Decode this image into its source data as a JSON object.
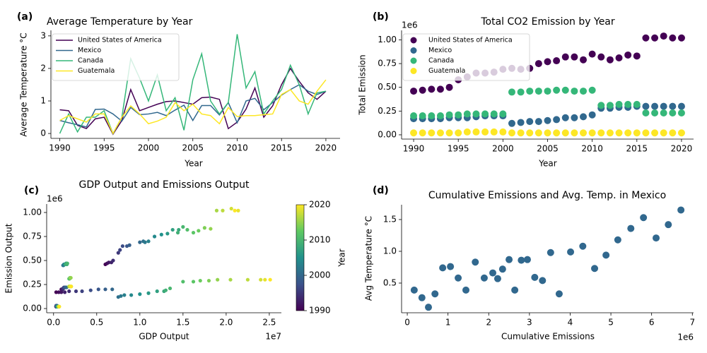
{
  "chart_data": [
    {
      "type": "line",
      "panel_label": "(a)",
      "title": "Average Temperature by Year",
      "xlabel": "Year",
      "ylabel": "Average Temperature °C",
      "x": [
        1990,
        1991,
        1992,
        1993,
        1994,
        1995,
        1996,
        1997,
        1998,
        1999,
        2000,
        2001,
        2002,
        2003,
        2004,
        2005,
        2006,
        2007,
        2008,
        2009,
        2010,
        2011,
        2012,
        2013,
        2014,
        2015,
        2016,
        2017,
        2018,
        2019,
        2020
      ],
      "series": [
        {
          "name": "United States of America",
          "color": "#440154",
          "values": [
            0.73,
            0.7,
            0.25,
            0.15,
            0.45,
            0.5,
            -0.02,
            0.4,
            1.35,
            0.7,
            0.8,
            0.9,
            0.98,
            1.0,
            0.95,
            0.9,
            1.1,
            1.12,
            1.05,
            0.15,
            0.35,
            0.75,
            1.4,
            0.5,
            0.85,
            1.5,
            2.0,
            1.6,
            1.25,
            1.05,
            1.3
          ]
        },
        {
          "name": "Mexico",
          "color": "#31688e",
          "values": [
            0.4,
            0.33,
            0.27,
            0.2,
            0.74,
            0.75,
            0.6,
            0.38,
            0.8,
            0.58,
            0.6,
            0.65,
            0.55,
            0.72,
            0.87,
            0.4,
            0.86,
            0.86,
            0.57,
            0.95,
            0.33,
            1.0,
            1.08,
            0.73,
            0.95,
            1.18,
            1.35,
            1.5,
            1.3,
            1.2,
            1.3
          ]
        },
        {
          "name": "Canada",
          "color": "#35b779",
          "values": [
            0.0,
            0.6,
            0.05,
            0.5,
            0.5,
            0.7,
            0.0,
            0.5,
            2.3,
            1.7,
            1.0,
            1.8,
            0.7,
            1.1,
            0.1,
            1.65,
            2.45,
            1.0,
            0.6,
            0.95,
            3.05,
            1.4,
            1.9,
            0.6,
            1.0,
            1.35,
            2.1,
            1.5,
            0.6,
            1.25,
            1.3
          ]
        },
        {
          "name": "Guatemala",
          "color": "#fde725",
          "values": [
            0.4,
            0.55,
            0.45,
            0.35,
            0.6,
            0.6,
            0.0,
            0.5,
            0.85,
            0.6,
            0.3,
            0.38,
            0.5,
            0.95,
            0.7,
            0.9,
            0.6,
            0.55,
            0.3,
            0.8,
            0.52,
            0.55,
            0.55,
            0.58,
            0.6,
            1.2,
            1.35,
            1.0,
            0.9,
            1.3,
            1.65
          ]
        }
      ],
      "xlim": [
        1989,
        2021.6
      ],
      "ylim": [
        -0.15,
        3.17
      ],
      "xticks": [
        1990,
        1995,
        2000,
        2005,
        2010,
        2015,
        2020
      ],
      "yticks": [
        0,
        1,
        2,
        3
      ],
      "legend": "upper left"
    },
    {
      "type": "scatter",
      "panel_label": "(b)",
      "title": "Total CO2 Emission by Year",
      "xlabel": "Year",
      "ylabel": "Total Emission",
      "y_multiplier": "1e6",
      "x": [
        1990,
        1991,
        1992,
        1993,
        1994,
        1995,
        1996,
        1997,
        1998,
        1999,
        2000,
        2001,
        2002,
        2003,
        2004,
        2005,
        2006,
        2007,
        2008,
        2009,
        2010,
        2011,
        2012,
        2013,
        2014,
        2015,
        2016,
        2017,
        2018,
        2019,
        2020
      ],
      "series": [
        {
          "name": "United States of America",
          "color": "#440154",
          "values": [
            0.46,
            0.47,
            0.48,
            0.48,
            0.5,
            0.58,
            0.61,
            0.65,
            0.65,
            0.66,
            0.69,
            0.7,
            0.69,
            0.7,
            0.75,
            0.77,
            0.78,
            0.82,
            0.82,
            0.79,
            0.85,
            0.82,
            0.79,
            0.81,
            0.84,
            0.83,
            1.02,
            1.02,
            1.04,
            1.02,
            1.02
          ]
        },
        {
          "name": "Mexico",
          "color": "#31688e",
          "values": [
            0.17,
            0.17,
            0.17,
            0.17,
            0.18,
            0.18,
            0.18,
            0.19,
            0.2,
            0.2,
            0.2,
            0.12,
            0.13,
            0.14,
            0.14,
            0.15,
            0.16,
            0.18,
            0.18,
            0.19,
            0.21,
            0.28,
            0.28,
            0.29,
            0.29,
            0.3,
            0.3,
            0.3,
            0.3,
            0.3,
            0.3
          ]
        },
        {
          "name": "Canada",
          "color": "#35b779",
          "values": [
            0.2,
            0.2,
            0.2,
            0.2,
            0.21,
            0.21,
            0.22,
            0.22,
            0.22,
            0.22,
            0.22,
            0.45,
            0.45,
            0.46,
            0.46,
            0.46,
            0.47,
            0.47,
            0.46,
            0.46,
            0.47,
            0.31,
            0.31,
            0.32,
            0.32,
            0.32,
            0.23,
            0.23,
            0.23,
            0.23,
            0.23
          ]
        },
        {
          "name": "Guatemala",
          "color": "#fde725",
          "values": [
            0.02,
            0.02,
            0.02,
            0.02,
            0.02,
            0.02,
            0.03,
            0.03,
            0.03,
            0.03,
            0.03,
            0.02,
            0.02,
            0.02,
            0.02,
            0.02,
            0.02,
            0.02,
            0.02,
            0.02,
            0.02,
            0.02,
            0.02,
            0.02,
            0.02,
            0.02,
            0.02,
            0.02,
            0.02,
            0.02,
            0.02
          ]
        }
      ],
      "xlim": [
        1988.65,
        2021.35
      ],
      "ylim": [
        -0.045,
        1.1
      ],
      "xticks": [
        1990,
        1995,
        2000,
        2005,
        2010,
        2015,
        2020
      ],
      "yticks": [
        {
          "value": 0,
          "label": "0.00"
        },
        0.25,
        {
          "value": 0.5,
          "label": "0.50"
        },
        0.75,
        {
          "value": 1,
          "label": "1.00"
        }
      ],
      "legend": "upper left"
    },
    {
      "type": "scatter",
      "panel_label": "(c)",
      "title": "GDP Output and Emissions Output",
      "xlabel": "GDP Output",
      "ylabel": "Emission Output",
      "x_multiplier": "1e7",
      "y_multiplier": "1e6",
      "x": [
        0.6,
        0.62,
        0.64,
        0.67,
        0.69,
        0.75,
        0.77,
        0.8,
        0.85,
        0.88,
        1.0,
        1.04,
        1.06,
        1.1,
        1.17,
        1.25,
        1.32,
        1.38,
        1.45,
        1.44,
        1.5,
        1.55,
        1.62,
        1.68,
        1.75,
        1.82,
        1.89,
        1.96,
        2.06,
        2.14,
        2.1,
        0.03,
        0.06,
        0.09,
        0.13,
        0.18,
        0.26,
        0.33,
        0.43,
        0.52,
        0.6,
        0.68,
        0.75,
        0.78,
        0.82,
        0.9,
        1.0,
        1.1,
        1.2,
        1.28,
        1.3,
        1.35,
        1.5,
        1.62,
        1.7,
        1.8,
        1.9,
        2.05,
        2.25,
        2.4,
        2.45,
        2.51,
        0.09,
        0.095,
        0.1,
        0.105,
        0.11,
        0.115,
        0.12,
        0.13,
        0.135,
        0.14,
        0.15,
        0.11,
        0.115,
        0.12,
        0.13,
        0.14,
        0.145,
        0.15,
        0.155,
        0.14,
        0.16,
        0.18,
        0.185,
        0.19,
        0.195,
        0.2,
        0.18,
        0.185,
        0.195,
        0.205,
        0.2,
        0.03,
        0.03,
        0.03,
        0.03,
        0.03,
        0.03,
        0.03,
        0.035,
        0.035,
        0.035,
        0.04,
        0.04,
        0.04,
        0.04,
        0.045,
        0.045,
        0.045,
        0.05,
        0.05,
        0.05,
        0.05,
        0.055,
        0.055,
        0.055,
        0.06,
        0.06,
        0.06,
        0.065,
        0.065,
        0.065,
        0.065
      ],
      "values": [
        0.46,
        0.47,
        0.48,
        0.48,
        0.5,
        0.58,
        0.61,
        0.65,
        0.65,
        0.66,
        0.69,
        0.7,
        0.69,
        0.7,
        0.75,
        0.77,
        0.78,
        0.82,
        0.82,
        0.79,
        0.85,
        0.82,
        0.79,
        0.81,
        0.84,
        0.83,
        1.02,
        1.02,
        1.04,
        1.02,
        1.02,
        0.17,
        0.17,
        0.17,
        0.17,
        0.18,
        0.18,
        0.18,
        0.19,
        0.2,
        0.2,
        0.2,
        0.12,
        0.13,
        0.14,
        0.14,
        0.15,
        0.16,
        0.18,
        0.18,
        0.19,
        0.21,
        0.28,
        0.28,
        0.29,
        0.29,
        0.3,
        0.3,
        0.3,
        0.3,
        0.3,
        0.3,
        0.2,
        0.2,
        0.2,
        0.2,
        0.21,
        0.21,
        0.22,
        0.22,
        0.22,
        0.22,
        0.22,
        0.45,
        0.45,
        0.46,
        0.46,
        0.46,
        0.47,
        0.47,
        0.46,
        0.46,
        0.47,
        0.31,
        0.31,
        0.32,
        0.32,
        0.32,
        0.23,
        0.23,
        0.23,
        0.23,
        0.23,
        0.02,
        0.02,
        0.02,
        0.02,
        0.02,
        0.02,
        0.03,
        0.03,
        0.03,
        0.03,
        0.03,
        0.02,
        0.02,
        0.02,
        0.02,
        0.02,
        0.02,
        0.02,
        0.02,
        0.02,
        0.02,
        0.02,
        0.02,
        0.02,
        0.02,
        0.02,
        0.02,
        0.02,
        0.02,
        0.02,
        0.02
      ],
      "color_values": [
        1990,
        1991,
        1992,
        1993,
        1994,
        1995,
        1996,
        1997,
        1998,
        1999,
        2000,
        2001,
        2002,
        2003,
        2004,
        2005,
        2006,
        2007,
        2008,
        2009,
        2010,
        2011,
        2012,
        2013,
        2014,
        2015,
        2016,
        2017,
        2018,
        2019,
        2020,
        1990,
        1991,
        1992,
        1993,
        1994,
        1995,
        1996,
        1997,
        1998,
        1999,
        2000,
        2001,
        2002,
        2003,
        2004,
        2005,
        2006,
        2007,
        2008,
        2009,
        2010,
        2011,
        2012,
        2013,
        2014,
        2015,
        2016,
        2017,
        2018,
        2019,
        2020,
        1990,
        1991,
        1992,
        1993,
        1994,
        1995,
        1996,
        1997,
        1998,
        1999,
        2000,
        2001,
        2002,
        2003,
        2004,
        2005,
        2006,
        2007,
        2008,
        2009,
        2010,
        2011,
        2012,
        2013,
        2014,
        2015,
        2016,
        2017,
        2018,
        2019,
        2020,
        1990,
        1991,
        1992,
        1993,
        1994,
        1995,
        1996,
        1997,
        1998,
        1999,
        2000,
        2001,
        2002,
        2003,
        2004,
        2005,
        2006,
        2007,
        2008,
        2009,
        2010,
        2011,
        2012,
        2013,
        2014,
        2015,
        2016,
        2017,
        2018,
        2019,
        2020
      ],
      "colormap": "viridis",
      "colorbar_label": "Year",
      "colorbar_lim": [
        1990,
        2020
      ],
      "colorbar_ticks": [
        1990,
        2000,
        2010,
        2020
      ],
      "xlim": [
        -0.08,
        2.64
      ],
      "ylim": [
        -0.044,
        1.088
      ],
      "xticks": [
        {
          "value": 0,
          "label": "0.0"
        },
        0.5,
        {
          "value": 1,
          "label": "1.0"
        },
        1.5,
        {
          "value": 2,
          "label": "2.0"
        },
        2.5
      ],
      "yticks": [
        {
          "value": 0,
          "label": "0.00"
        },
        0.25,
        {
          "value": 0.5,
          "label": "0.50"
        },
        0.75,
        {
          "value": 1,
          "label": "1.00"
        }
      ]
    },
    {
      "type": "scatter",
      "panel_label": "(d)",
      "title": "Cumulative Emissions and Avg. Temp. in Mexico",
      "xlabel": "Cumulative Emissions",
      "ylabel": "Avg Temperature °C",
      "x_multiplier": "1e6",
      "x": [
        0.17,
        0.36,
        0.52,
        0.68,
        0.87,
        1.06,
        1.25,
        1.44,
        1.67,
        1.89,
        2.1,
        2.22,
        2.34,
        2.5,
        2.64,
        2.8,
        2.95,
        3.13,
        3.32,
        3.52,
        3.73,
        4.01,
        4.31,
        4.6,
        4.88,
        5.17,
        5.49,
        5.8,
        6.11,
        6.41,
        6.72
      ],
      "values": [
        0.39,
        0.27,
        0.12,
        0.33,
        0.74,
        0.76,
        0.58,
        0.39,
        0.83,
        0.58,
        0.66,
        0.57,
        0.72,
        0.87,
        0.39,
        0.86,
        0.87,
        0.59,
        0.54,
        0.98,
        0.33,
        0.99,
        1.08,
        0.73,
        0.94,
        1.18,
        1.36,
        1.53,
        1.21,
        1.42,
        1.65
      ],
      "color": "#31688e",
      "xlim": [
        -0.14,
        7.03
      ],
      "ylim": [
        0.033,
        1.733
      ],
      "xticks": [
        0,
        1,
        2,
        3,
        4,
        5,
        6,
        7
      ],
      "yticks": [
        0.5,
        {
          "value": 1,
          "label": "1.0"
        },
        1.5
      ]
    }
  ]
}
